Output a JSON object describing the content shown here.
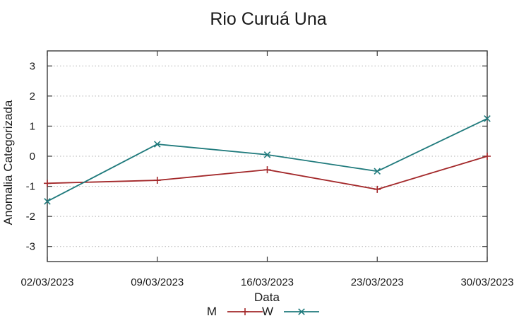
{
  "chart_data": {
    "type": "line",
    "title": "Rio Curuá Una",
    "xlabel": "Data",
    "ylabel": "Anomalia Categorizada",
    "categories": [
      "02/03/2023",
      "09/03/2023",
      "16/03/2023",
      "23/03/2023",
      "30/03/2023"
    ],
    "series": [
      {
        "name": "M",
        "color": "#a3282a",
        "marker": "plus",
        "values": [
          -0.9,
          -0.8,
          -0.45,
          -1.1,
          0.0
        ]
      },
      {
        "name": "W",
        "color": "#1f7a7c",
        "marker": "cross",
        "values": [
          -1.5,
          0.4,
          0.05,
          -0.5,
          1.25
        ]
      }
    ],
    "yticks": [
      3,
      2,
      1,
      0,
      -1,
      -2,
      -3
    ],
    "ytick_labels": [
      "3",
      "2",
      "1",
      "0",
      "-1",
      "-2",
      "-3"
    ],
    "ylim": [
      -3.5,
      3.5
    ],
    "grid": "horizontal-dotted",
    "grid_color": "#b3b3b3",
    "border_color": "#3a3a3a",
    "legend_position": "bottom-center"
  }
}
